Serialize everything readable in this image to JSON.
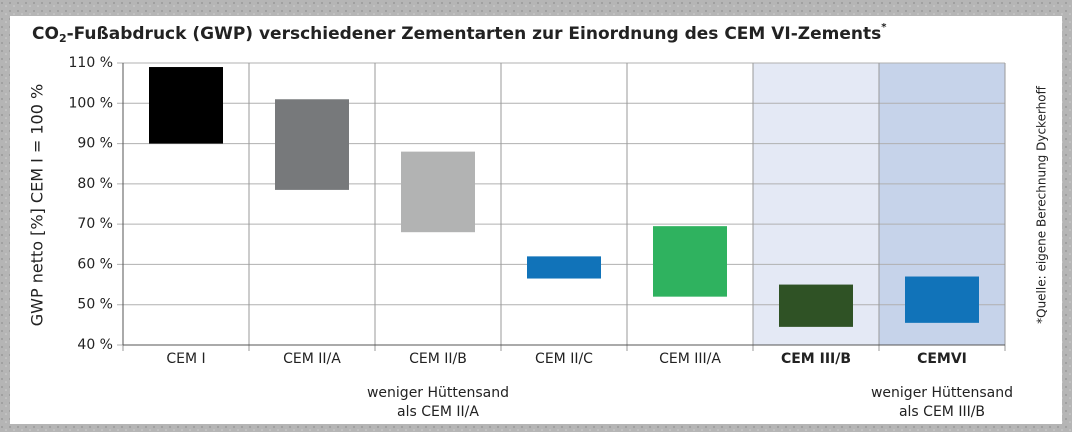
{
  "chart_data": {
    "type": "floating-bar",
    "title_parts": [
      "CO",
      "2",
      "-Fußabdruck (GWP) verschiedener Zementarten zur Einordnung des CEM VI-Zements",
      "*"
    ],
    "y_label": "GWP netto [%] CEM I = 100 %",
    "source_note": "*Quelle: eigene Berechnung Dyckerhoff",
    "categories": [
      "CEM I",
      "CEM II/A",
      "CEM II/B",
      "CEM II/C",
      "CEM III/A",
      "CEM III/B",
      "CEMVI"
    ],
    "values": [
      [
        90,
        109
      ],
      [
        78.5,
        101
      ],
      [
        68,
        88
      ],
      [
        56.5,
        62
      ],
      [
        52,
        69.5
      ],
      [
        44.5,
        55
      ],
      [
        45.5,
        57
      ]
    ],
    "colors": [
      "#000000",
      "#77797b",
      "#b2b3b3",
      "#1173b9",
      "#2fb25f",
      "#2f5225",
      "#1173b9"
    ],
    "band_colors": [
      null,
      null,
      null,
      null,
      null,
      "#e4e9f5",
      "#c6d3ea"
    ],
    "annotations": [
      [
        "weniger Hüttensand",
        "als CEM II/A"
      ],
      [
        "weniger Hüttensand",
        "als CEM III/B"
      ]
    ],
    "ylim": [
      40,
      110
    ],
    "yticks": [
      {
        "value": 40,
        "label": "40 %"
      },
      {
        "value": 50,
        "label": "50 %"
      },
      {
        "value": 60,
        "label": "60 %"
      },
      {
        "value": 70,
        "label": "70 %"
      },
      {
        "value": 80,
        "label": "80 %"
      },
      {
        "value": 90,
        "label": "90 %"
      },
      {
        "value": 100,
        "label": "100 %"
      },
      {
        "value": 110,
        "label": "110 %"
      }
    ],
    "grid": true
  }
}
